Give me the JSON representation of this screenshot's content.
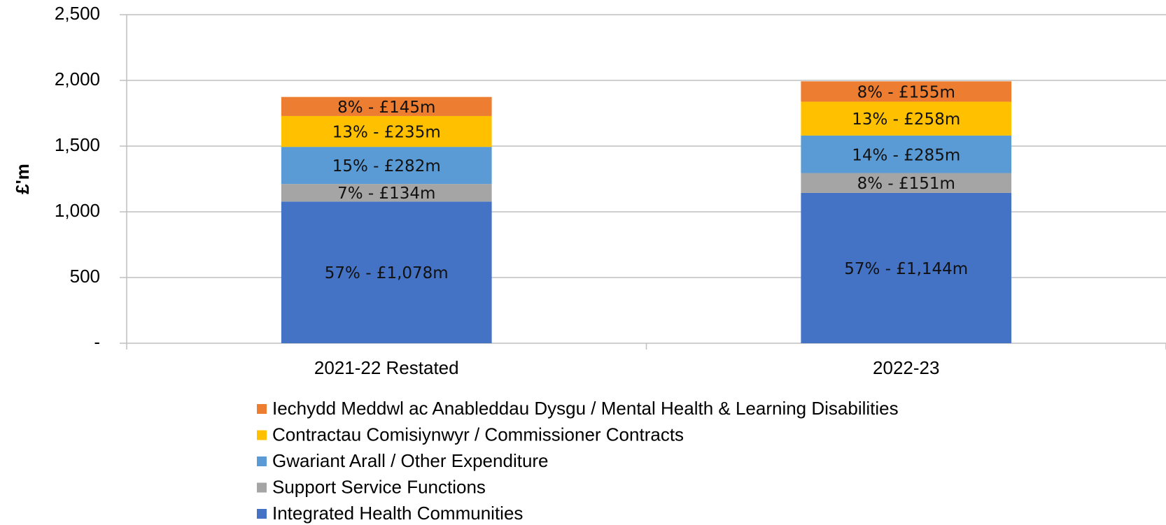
{
  "chart_data": {
    "type": "stacked_bar",
    "y_label": "£'m",
    "categories": [
      "2021-22 Restated",
      "2022-23"
    ],
    "series": [
      {
        "name": "Integrated Health Communities",
        "color": "#4472C4",
        "values": [
          1078,
          1144
        ],
        "value_labels": [
          "57% - £1,078m",
          "57% - £1,144m"
        ]
      },
      {
        "name": "Support Service Functions",
        "color": "#A5A5A5",
        "values": [
          134,
          151
        ],
        "value_labels": [
          "7% - £134m",
          "8% - £151m"
        ]
      },
      {
        "name": "Gwariant Arall / Other Expenditure",
        "color": "#5B9BD5",
        "values": [
          282,
          285
        ],
        "value_labels": [
          "15% - £282m",
          "14% - £285m"
        ]
      },
      {
        "name": "Contractau Comisiynwyr / Commissioner Contracts",
        "color": "#FFC000",
        "values": [
          235,
          258
        ],
        "value_labels": [
          "13% - £235m",
          "13% - £258m"
        ]
      },
      {
        "name": "Iechydd Meddwl ac Anableddau Dysgu / Mental Health & Learning Disabilities",
        "color": "#ED7D31",
        "values": [
          145,
          155
        ],
        "value_labels": [
          "8% - £145m",
          "8% - £155m"
        ]
      }
    ],
    "ylim": [
      0,
      2500
    ],
    "yticks": [
      {
        "value": 0,
        "label": "-"
      },
      500,
      {
        "value": 1000,
        "label": "1,000"
      },
      {
        "value": 1500,
        "label": "1,500"
      },
      {
        "value": 2000,
        "label": "2,000"
      },
      {
        "value": 2500,
        "label": "2,500"
      }
    ],
    "grid": true,
    "legend": "bottom"
  }
}
